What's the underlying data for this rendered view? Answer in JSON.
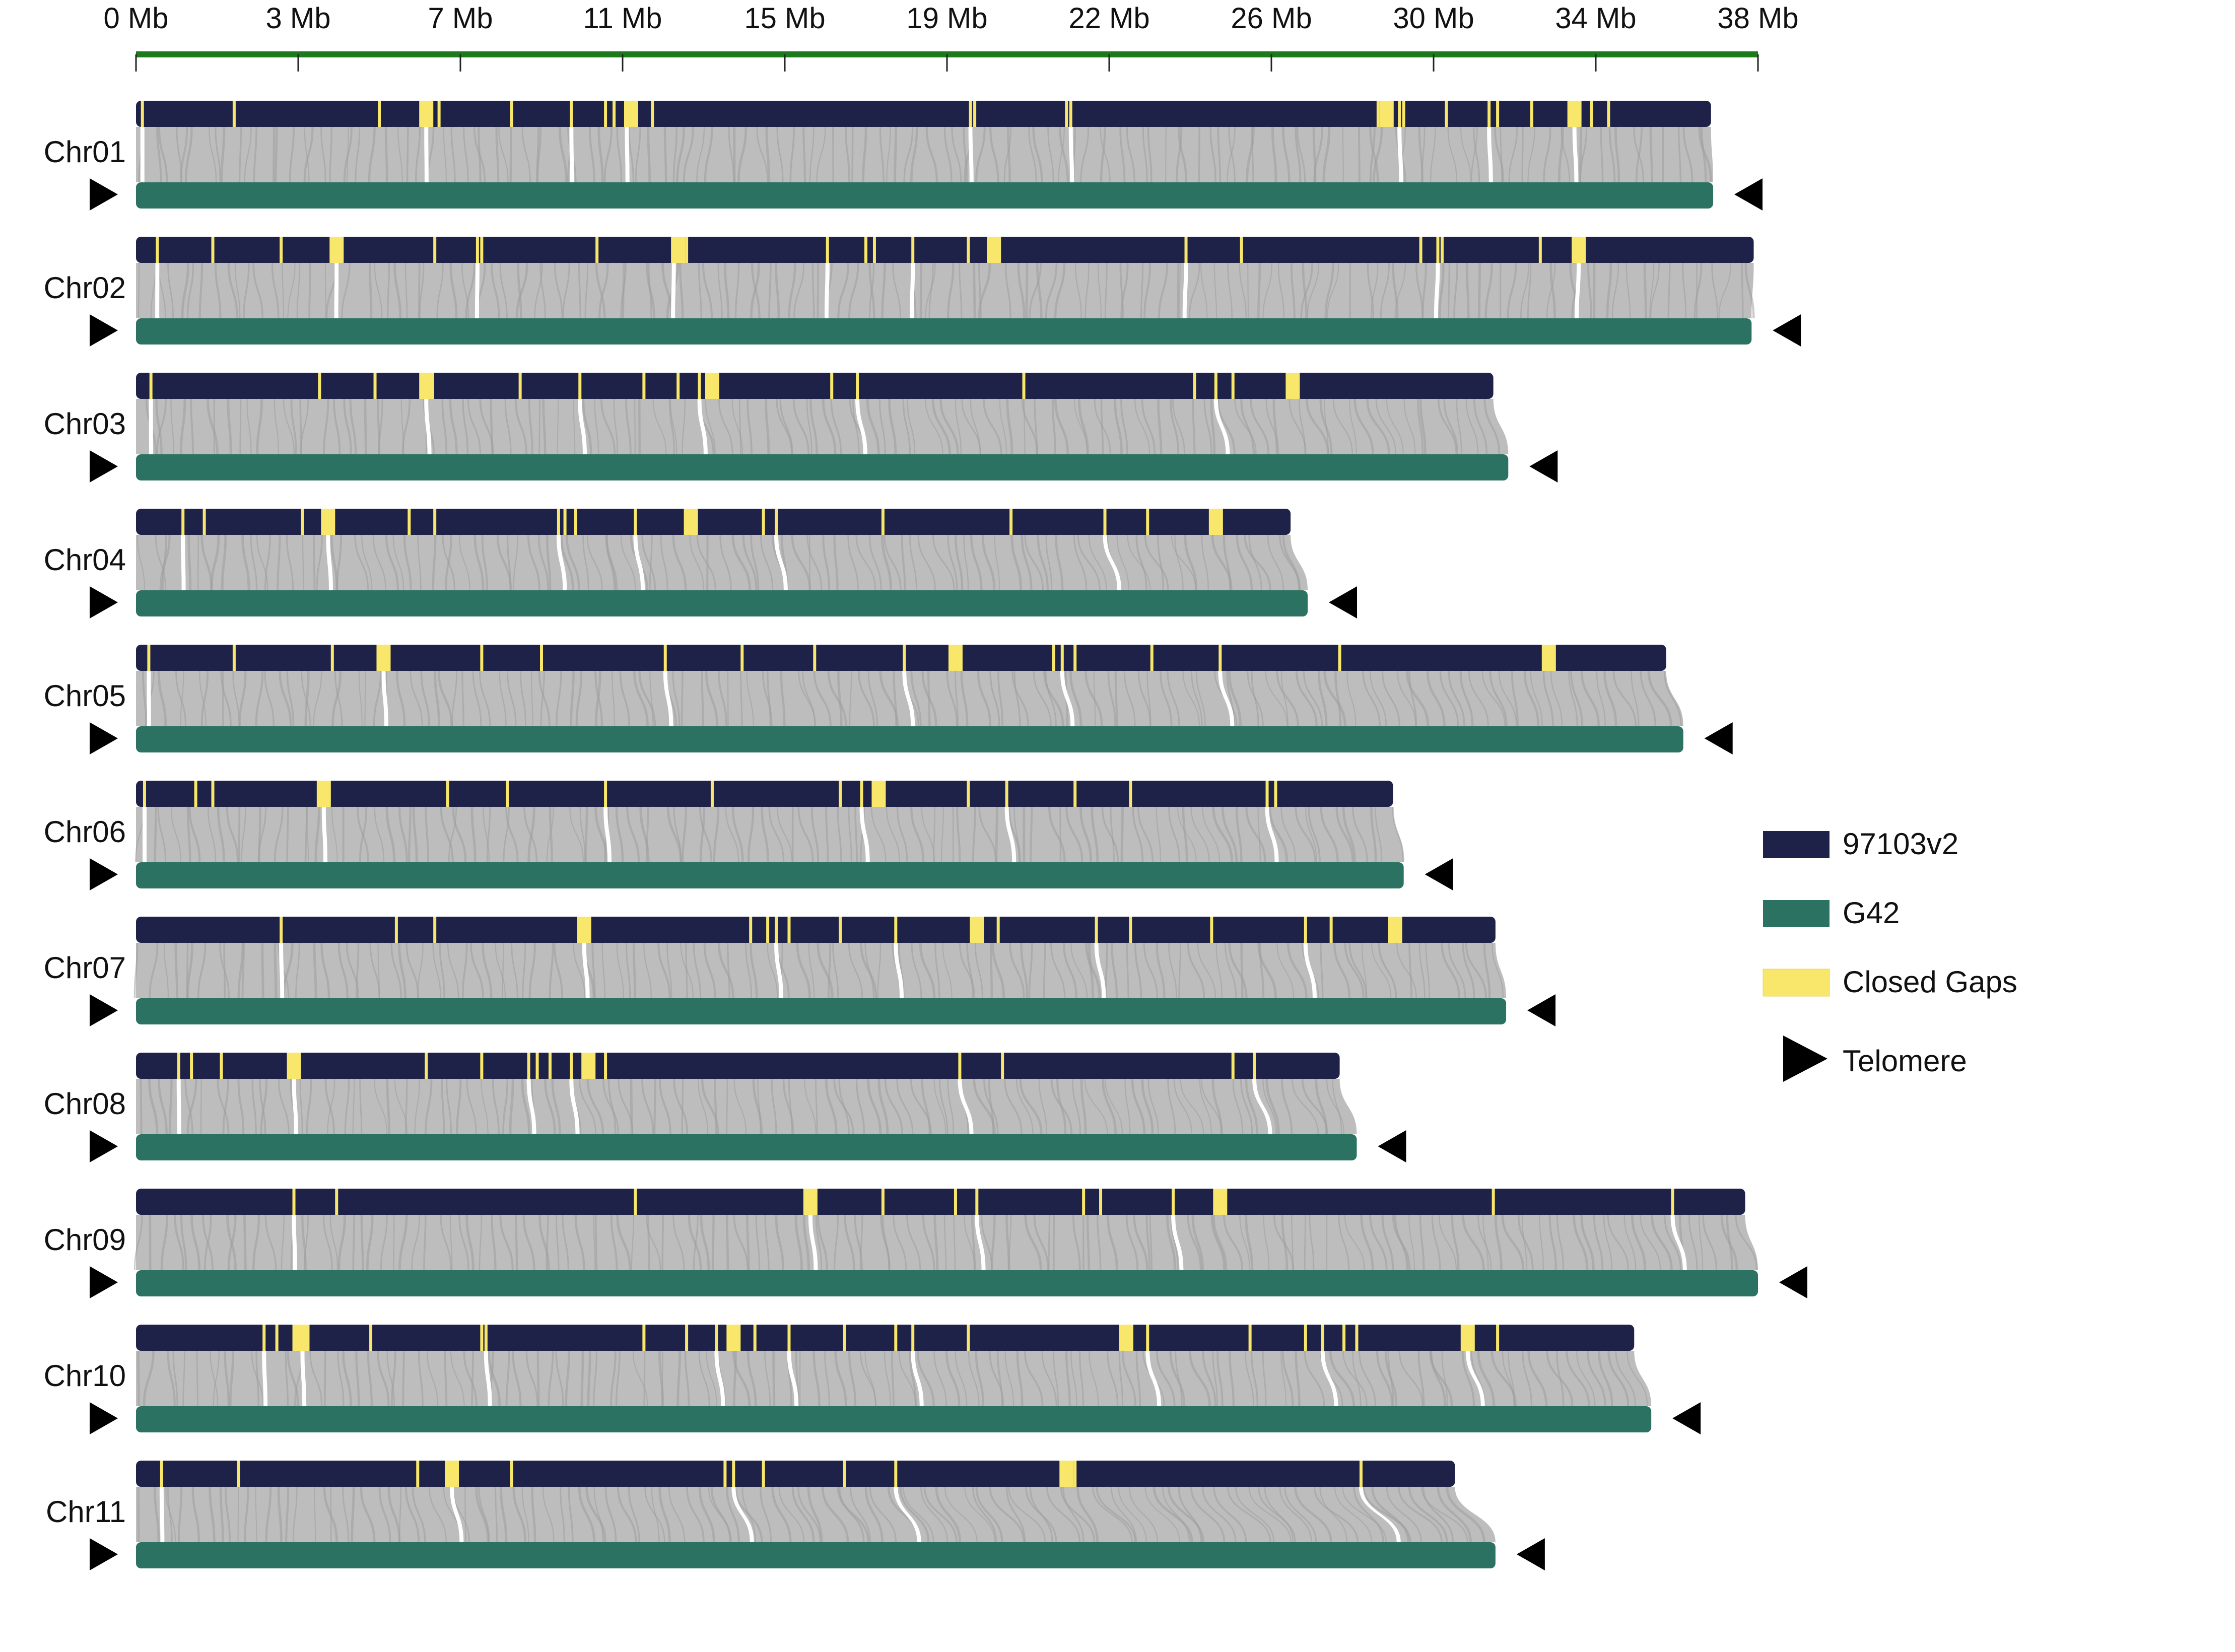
{
  "colors": {
    "ref": "#1f2248",
    "query": "#2b7262",
    "gap": "#f8e76b",
    "link": "#bdbdbd",
    "link_dark": "#9e9e9e",
    "scale": "#1c7a1c",
    "telomere": "#000000"
  },
  "scale": {
    "ticks": [
      "0 Mb",
      "3 Mb",
      "7 Mb",
      "11 Mb",
      "15 Mb",
      "19 Mb",
      "22 Mb",
      "26 Mb",
      "30 Mb",
      "34 Mb",
      "38 Mb"
    ],
    "max_mb": 38
  },
  "legend": [
    {
      "label": "97103v2",
      "type": "ref"
    },
    {
      "label": "G42",
      "type": "query"
    },
    {
      "label": "Closed Gaps",
      "type": "gap"
    },
    {
      "label": "Telomere",
      "type": "telomere"
    }
  ],
  "chromosomes": [
    {
      "name": "Chr01",
      "ref_len": 36.9,
      "query_len": 36.95,
      "telomeres": [
        "left",
        "right"
      ],
      "gaps": [
        0.15,
        2.3,
        5.7,
        6.8,
        7.1,
        8.8,
        10.2,
        11.0,
        11.2,
        11.5,
        11.6,
        12.1,
        19.55,
        19.65,
        21.8,
        21.9,
        29.1,
        29.3,
        29.6,
        29.7,
        30.7,
        31.7,
        31.9,
        32.7,
        33.7,
        34.1,
        34.5
      ]
    },
    {
      "name": "Chr02",
      "ref_len": 37.9,
      "query_len": 37.85,
      "telomeres": [
        "left",
        "right"
      ],
      "gaps": [
        0.5,
        1.8,
        3.4,
        4.7,
        4.8,
        7.0,
        8.0,
        8.1,
        10.8,
        12.6,
        12.7,
        12.9,
        16.2,
        17.1,
        17.3,
        18.2,
        19.5,
        20.1,
        24.6,
        25.9,
        30.1,
        30.5,
        30.6,
        32.9,
        33.8
      ]
    },
    {
      "name": "Chr03",
      "ref_len": 31.8,
      "query_len": 32.15,
      "telomeres": [
        "left",
        "right"
      ],
      "gaps": [
        0.35,
        4.3,
        5.6,
        6.8,
        6.95,
        9.0,
        10.4,
        11.9,
        12.7,
        13.2,
        13.5,
        16.3,
        16.9,
        20.8,
        24.8,
        25.3,
        25.7,
        27.1
      ]
    },
    {
      "name": "Chr04",
      "ref_len": 27.05,
      "query_len": 27.45,
      "telomeres": [
        "left",
        "right"
      ],
      "gaps": [
        1.1,
        1.6,
        3.9,
        4.5,
        6.4,
        7.0,
        9.9,
        10.05,
        10.3,
        11.7,
        13.0,
        14.7,
        15.0,
        17.5,
        20.5,
        22.7,
        23.7,
        25.3
      ]
    },
    {
      "name": "Chr05",
      "ref_len": 35.85,
      "query_len": 36.25,
      "telomeres": [
        "left",
        "right"
      ],
      "gaps": [
        0.3,
        2.3,
        4.6,
        5.8,
        8.1,
        9.5,
        12.4,
        14.2,
        15.9,
        18.0,
        19.2,
        21.5,
        21.7,
        22.0,
        23.8,
        25.4,
        28.2,
        33.1
      ]
    },
    {
      "name": "Chr06",
      "ref_len": 29.45,
      "query_len": 29.7,
      "telomeres": [
        "left",
        "right"
      ],
      "gaps": [
        0.2,
        1.4,
        1.8,
        4.4,
        7.3,
        8.7,
        11.0,
        13.5,
        16.5,
        17.0,
        17.4,
        19.5,
        20.4,
        22.0,
        23.3,
        26.5,
        26.7
      ]
    },
    {
      "name": "Chr07",
      "ref_len": 31.85,
      "query_len": 32.1,
      "telomeres": [
        "left",
        "right"
      ],
      "gaps": [
        3.4,
        6.1,
        7.0,
        10.5,
        14.4,
        14.8,
        15.0,
        15.3,
        16.5,
        17.8,
        19.7,
        20.2,
        22.5,
        23.3,
        25.2,
        27.4,
        28.0,
        29.5
      ]
    },
    {
      "name": "Chr08",
      "ref_len": 28.2,
      "query_len": 28.6,
      "telomeres": [
        "left",
        "right"
      ],
      "gaps": [
        1.0,
        1.3,
        2.0,
        3.7,
        6.8,
        8.1,
        9.2,
        9.4,
        9.7,
        10.2,
        10.6,
        11.0,
        19.3,
        20.3,
        25.7,
        26.2
      ]
    },
    {
      "name": "Chr09",
      "ref_len": 37.7,
      "query_len": 38.0,
      "telomeres": [
        "left",
        "right"
      ],
      "gaps": [
        3.7,
        4.7,
        11.7,
        15.8,
        17.5,
        19.2,
        19.7,
        22.2,
        22.6,
        24.3,
        25.4,
        31.8,
        36.0
      ]
    },
    {
      "name": "Chr10",
      "ref_len": 35.1,
      "query_len": 35.5,
      "telomeres": [
        "left",
        "right"
      ],
      "gaps": [
        3.0,
        3.3,
        3.7,
        3.9,
        5.5,
        8.1,
        8.2,
        11.9,
        12.9,
        13.6,
        14.0,
        14.5,
        15.3,
        16.6,
        17.8,
        18.2,
        19.5,
        23.2,
        23.7,
        26.1,
        27.4,
        27.8,
        28.3,
        28.6,
        31.2,
        31.9
      ]
    },
    {
      "name": "Chr11",
      "ref_len": 30.9,
      "query_len": 31.85,
      "telomeres": [
        "left",
        "right"
      ],
      "gaps": [
        0.6,
        2.4,
        6.6,
        7.4,
        8.8,
        13.8,
        14.0,
        14.7,
        16.6,
        17.8,
        21.8,
        22.0,
        28.7
      ]
    }
  ]
}
